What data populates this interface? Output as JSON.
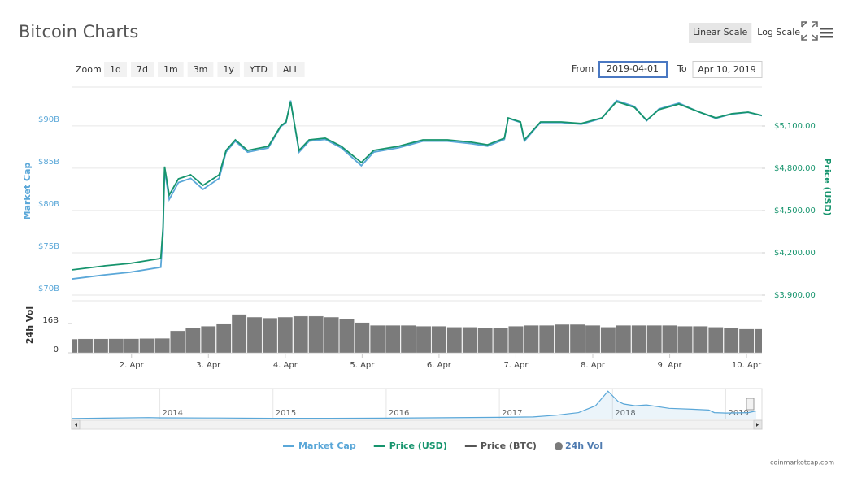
{
  "header": {
    "title": "Bitcoin Charts",
    "scale_buttons": [
      "Linear Scale",
      "Log Scale"
    ],
    "active_scale": 0
  },
  "zoom": {
    "label": "Zoom",
    "buttons": [
      "1d",
      "7d",
      "1m",
      "3m",
      "1y",
      "YTD",
      "ALL"
    ]
  },
  "range": {
    "from_label": "From",
    "from": "2019-04-01",
    "to_label": "To",
    "to": "Apr 10, 2019"
  },
  "chart_data": [
    {
      "type": "line",
      "y_label": "Market Cap",
      "y2_label": "Price (USD)",
      "x": [
        1.22,
        1.66,
        1.98,
        2.38,
        2.41,
        2.43,
        2.49,
        2.61,
        2.77,
        2.93,
        3.14,
        3.23,
        3.35,
        3.51,
        3.78,
        3.94,
        4.01,
        4.07,
        4.18,
        4.31,
        4.52,
        4.73,
        4.99,
        5.15,
        5.47,
        5.79,
        6.11,
        6.42,
        6.63,
        6.85,
        6.9,
        7.06,
        7.11,
        7.32,
        7.59,
        7.85,
        8.12,
        8.31,
        8.54,
        8.7,
        8.86,
        9.12,
        9.39,
        9.6,
        9.81,
        10.02,
        10.2
      ],
      "xlim": [
        1.22,
        10.2
      ],
      "xticks": [
        {
          "value": 2,
          "label": "2. Apr"
        },
        {
          "value": 3,
          "label": "3. Apr"
        },
        {
          "value": 4,
          "label": "4. Apr"
        },
        {
          "value": 5,
          "label": "5. Apr"
        },
        {
          "value": 6,
          "label": "6. Apr"
        },
        {
          "value": 7,
          "label": "7. Apr"
        },
        {
          "value": 8,
          "label": "8. Apr"
        },
        {
          "value": 9,
          "label": "9. Apr"
        },
        {
          "value": 10,
          "label": "10. Apr"
        }
      ],
      "ylim": [
        70,
        94.6
      ],
      "yticks": [
        {
          "value": 70,
          "label": "$70B"
        },
        {
          "value": 75,
          "label": "$75B"
        },
        {
          "value": 80,
          "label": "$80B"
        },
        {
          "value": 85,
          "label": "$85B"
        },
        {
          "value": 90,
          "label": "$90B"
        }
      ],
      "y2lim": [
        3900,
        5377
      ],
      "y2ticks": [
        {
          "value": 3900,
          "label": "$3,900.00"
        },
        {
          "value": 4200,
          "label": "$4,200.00"
        },
        {
          "value": 4500,
          "label": "$4,500.00"
        },
        {
          "value": 4800,
          "label": "$4,800.00"
        },
        {
          "value": 5100,
          "label": "$5,100.00"
        }
      ],
      "grid": true,
      "series": [
        {
          "name": "Market Cap",
          "color": "#5aa7d8",
          "axis": "y",
          "values": [
            71.9,
            72.4,
            72.7,
            73.3,
            77.2,
            84.8,
            81.3,
            83.3,
            83.8,
            82.5,
            83.8,
            86.9,
            88.2,
            86.9,
            87.4,
            89.9,
            90.4,
            93.0,
            86.9,
            88.2,
            88.4,
            87.4,
            85.3,
            86.9,
            87.4,
            88.2,
            88.2,
            87.9,
            87.6,
            88.4,
            90.9,
            90.4,
            88.2,
            90.4,
            90.4,
            90.2,
            90.9,
            93.0,
            92.3,
            90.6,
            92.0,
            92.7,
            91.6,
            90.9,
            91.4,
            91.6,
            91.2
          ]
        },
        {
          "name": "Price (USD)",
          "color": "#16946d",
          "axis": "y2",
          "values": [
            4079,
            4108,
            4125,
            4160,
            4379,
            4812,
            4610,
            4725,
            4754,
            4679,
            4754,
            4927,
            5002,
            4927,
            4956,
            5100,
            5129,
            5273,
            4927,
            5002,
            5014,
            4956,
            4841,
            4927,
            4956,
            5002,
            5002,
            4985,
            4967,
            5014,
            5158,
            5129,
            5002,
            5129,
            5129,
            5118,
            5158,
            5273,
            5233,
            5141,
            5216,
            5256,
            5198,
            5158,
            5187,
            5198,
            5175
          ]
        },
        {
          "name": "Price (BTC)",
          "color": "#555555",
          "axis": "y",
          "visible": false
        }
      ]
    },
    {
      "type": "bar",
      "y_label": "24h Vol",
      "x": [
        1.2,
        1.4,
        1.6,
        1.8,
        2.0,
        2.2,
        2.4,
        2.6,
        2.8,
        3.0,
        3.2,
        3.4,
        3.6,
        3.8,
        4.0,
        4.2,
        4.4,
        4.6,
        4.8,
        5.0,
        5.2,
        5.4,
        5.6,
        5.8,
        6.0,
        6.2,
        6.4,
        6.6,
        6.8,
        7.0,
        7.2,
        7.4,
        7.6,
        7.8,
        8.0,
        8.2,
        8.4,
        8.6,
        8.8,
        9.0,
        9.2,
        9.4,
        9.6,
        9.8,
        10.0,
        10.2
      ],
      "xlim": [
        1.22,
        10.2
      ],
      "ylim": [
        0,
        28.4
      ],
      "yticks": [
        0,
        {
          "value": 16,
          "label": "16B"
        }
      ],
      "series": [
        {
          "name": "24h Vol",
          "color": "#7b7b7b",
          "values": [
            7.5,
            7.6,
            7.6,
            7.7,
            7.7,
            7.8,
            7.9,
            12,
            13.5,
            14.5,
            16,
            21,
            19.5,
            19,
            19.5,
            20,
            20,
            19.5,
            18.5,
            16.5,
            15,
            15,
            15,
            14.5,
            14.5,
            14,
            14,
            13.5,
            13.5,
            14.5,
            15,
            15,
            15.5,
            15.5,
            15,
            14,
            15,
            15,
            15,
            15,
            14.5,
            14.5,
            14,
            13.5,
            13,
            13
          ]
        }
      ]
    },
    {
      "type": "area",
      "x": [
        2013.22,
        2013.9,
        2014.0,
        2014.5,
        2015.0,
        2015.5,
        2016.0,
        2016.5,
        2017.0,
        2017.3,
        2017.5,
        2017.7,
        2017.85,
        2017.96,
        2018.05,
        2018.1,
        2018.2,
        2018.3,
        2018.5,
        2018.7,
        2018.85,
        2018.9,
        2019.0,
        2019.2,
        2019.27
      ],
      "xlim": [
        2013.22,
        2019.32
      ],
      "xticks": [
        2014,
        2015,
        2016,
        2017,
        2018,
        2019
      ],
      "ylim": [
        0,
        350
      ],
      "series": [
        {
          "name": "Market Cap",
          "color": "#5aa7d8",
          "values": [
            1,
            12,
            9,
            8,
            4,
            4,
            6,
            10,
            15,
            20,
            40,
            70,
            150,
            320,
            200,
            170,
            150,
            160,
            120,
            110,
            100,
            70,
            65,
            70,
            90
          ]
        }
      ]
    }
  ],
  "credit": "coinmarketcap.com"
}
